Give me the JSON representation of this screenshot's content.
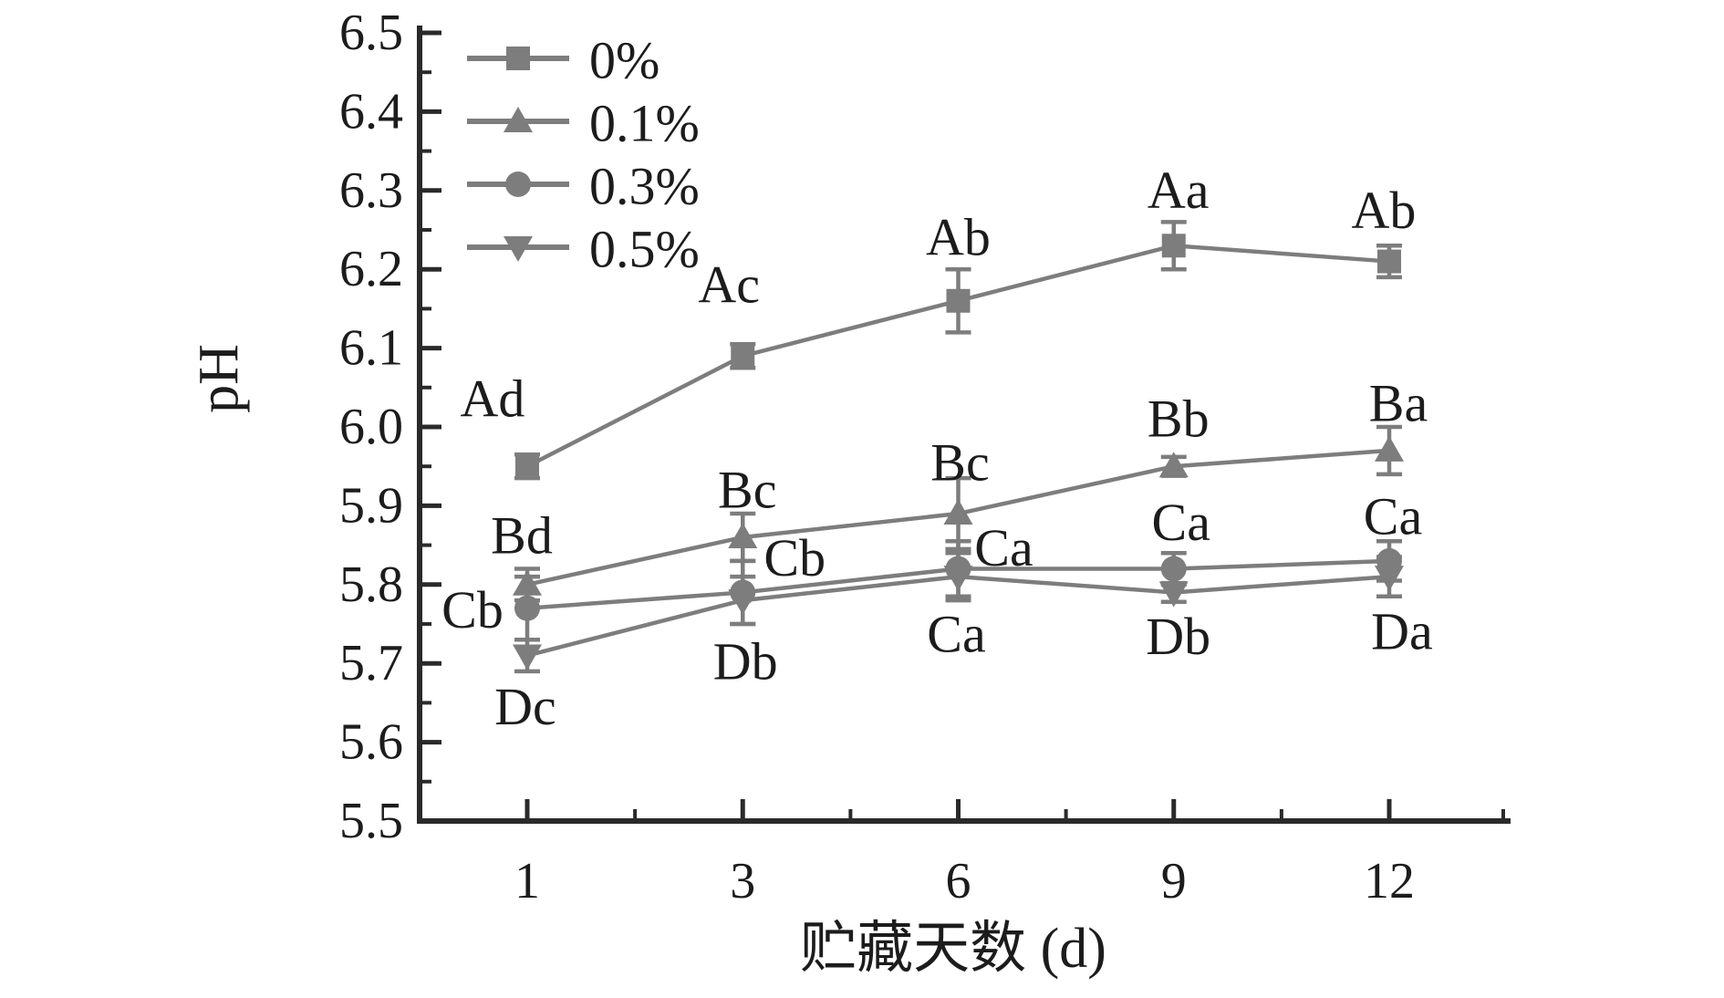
{
  "figure": {
    "background": "#ffffff"
  },
  "chart_data": {
    "type": "line",
    "title": "",
    "xlabel": "贮藏天数 (d)",
    "ylabel": "pH",
    "x": [
      1,
      3,
      6,
      9,
      12
    ],
    "xticklabels": [
      "1",
      "3",
      "6",
      "9",
      "12"
    ],
    "yticklabels": [
      "6.5",
      "6.4",
      "6.3",
      "6.2",
      "6.1",
      "6.0",
      "5.9",
      "5.8",
      "5.7",
      "5.6",
      "5.5"
    ],
    "ylim": [
      5.5,
      6.5
    ],
    "ytick_major_step": 0.1,
    "ytick_minor_step": 0.05,
    "grid": false,
    "legend_position": "top-left",
    "error_bars": true,
    "colors": {
      "series_gray": "#7d7d7d",
      "annotation_text": "#1c1c1c",
      "axis": "#2a2a2a"
    },
    "series": [
      {
        "name": "0%",
        "marker": "square",
        "values": [
          5.95,
          6.09,
          6.16,
          6.23,
          6.21
        ],
        "errors": [
          0.015,
          0.015,
          0.04,
          0.03,
          0.02
        ],
        "point_labels": [
          "Ad",
          "Ac",
          "Ab",
          "Aa",
          "Ab"
        ],
        "label_offsets": [
          [
            -38,
            -74
          ],
          [
            -15,
            -78
          ],
          [
            0,
            -70
          ],
          [
            5,
            -61
          ],
          [
            -6,
            -56
          ]
        ]
      },
      {
        "name": "0.1%",
        "marker": "triangle-up",
        "values": [
          5.8,
          5.86,
          5.89,
          5.95,
          5.97
        ],
        "errors": [
          0.02,
          0.03,
          0.045,
          0.012,
          0.03
        ],
        "point_labels": [
          "Bd",
          "Bc",
          "Bc",
          "Bb",
          "Ba"
        ],
        "label_offsets": [
          [
            -6,
            -54
          ],
          [
            5,
            -52
          ],
          [
            2,
            -56
          ],
          [
            5,
            -52
          ],
          [
            10,
            -52
          ]
        ]
      },
      {
        "name": "0.3%",
        "marker": "circle",
        "values": [
          5.77,
          5.79,
          5.82,
          5.82,
          5.83
        ],
        "errors": [
          0.04,
          0.04,
          0.035,
          0.02,
          0.025
        ],
        "point_labels": [
          "Cb",
          "Cb",
          "Ca",
          "Ca",
          "Ca"
        ],
        "label_offsets": [
          [
            -60,
            2
          ],
          [
            57,
            -38
          ],
          [
            50,
            -23
          ],
          [
            8,
            -51
          ],
          [
            4,
            -49
          ]
        ]
      },
      {
        "name": "0.5%",
        "marker": "triangle-down",
        "values": [
          5.71,
          5.78,
          5.81,
          5.79,
          5.81
        ],
        "errors": [
          0.02,
          0.03,
          0.03,
          0.012,
          0.025
        ],
        "point_labels": [
          "Dc",
          "Db",
          "Ca",
          "Db",
          "Da"
        ],
        "label_offsets": [
          [
            -2,
            56
          ],
          [
            3,
            67
          ],
          [
            -2,
            63
          ],
          [
            5,
            48
          ],
          [
            14,
            60
          ]
        ]
      }
    ]
  }
}
